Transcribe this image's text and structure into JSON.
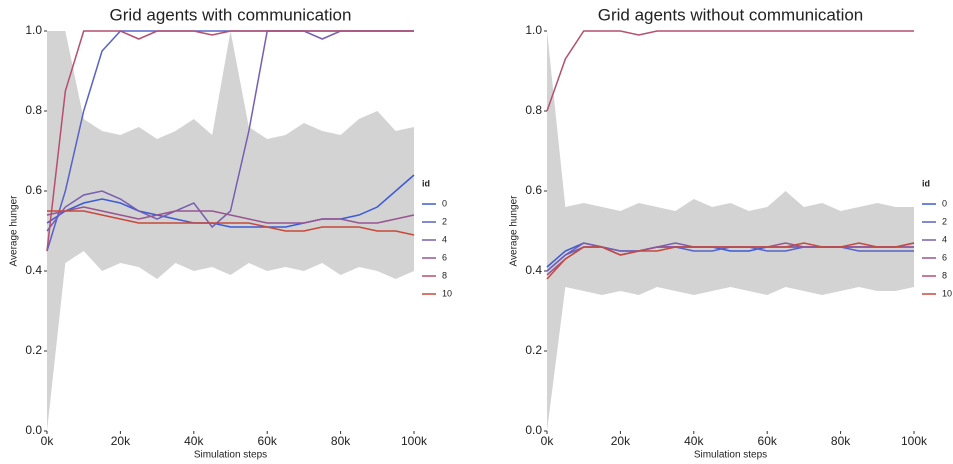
{
  "chart_data": [
    {
      "type": "line",
      "title": "Grid agents with communication",
      "x_label": "Simulation steps",
      "y_label": "Average hunger",
      "legend_title": "id",
      "x": [
        0,
        5000,
        10000,
        15000,
        20000,
        25000,
        30000,
        35000,
        40000,
        45000,
        50000,
        55000,
        60000,
        65000,
        70000,
        75000,
        80000,
        85000,
        90000,
        95000,
        100000
      ],
      "band": {
        "color": "#d3d3d3",
        "low": [
          0.0,
          0.42,
          0.45,
          0.4,
          0.42,
          0.41,
          0.38,
          0.42,
          0.4,
          0.41,
          0.39,
          0.42,
          0.4,
          0.41,
          0.4,
          0.42,
          0.39,
          0.41,
          0.4,
          0.38,
          0.4
        ],
        "high": [
          1.0,
          1.0,
          0.78,
          0.75,
          0.74,
          0.76,
          0.73,
          0.75,
          0.78,
          0.74,
          1.0,
          0.76,
          0.73,
          0.74,
          0.77,
          0.75,
          0.74,
          0.78,
          0.8,
          0.75,
          0.76
        ]
      },
      "series": [
        {
          "name": "0",
          "color": "#3c5ad8",
          "values": [
            0.52,
            0.55,
            0.57,
            0.58,
            0.57,
            0.55,
            0.54,
            0.53,
            0.52,
            0.52,
            0.51,
            0.51,
            0.51,
            0.51,
            0.52,
            0.53,
            0.53,
            0.54,
            0.56,
            0.6,
            0.64
          ]
        },
        {
          "name": "2",
          "color": "#5862c8",
          "values": [
            0.45,
            0.6,
            0.8,
            0.95,
            1.0,
            1.0,
            1.0,
            1.0,
            1.0,
            1.0,
            1.0,
            1.0,
            1.0,
            1.0,
            1.0,
            1.0,
            1.0,
            1.0,
            1.0,
            1.0,
            1.0
          ]
        },
        {
          "name": "4",
          "color": "#775eb0",
          "values": [
            0.5,
            0.56,
            0.59,
            0.6,
            0.58,
            0.55,
            0.53,
            0.55,
            0.57,
            0.51,
            0.55,
            0.75,
            1.0,
            1.0,
            1.0,
            0.98,
            1.0,
            1.0,
            1.0,
            1.0,
            1.0
          ]
        },
        {
          "name": "6",
          "color": "#985591",
          "values": [
            0.54,
            0.55,
            0.56,
            0.55,
            0.54,
            0.53,
            0.54,
            0.55,
            0.55,
            0.55,
            0.54,
            0.53,
            0.52,
            0.52,
            0.52,
            0.53,
            0.53,
            0.52,
            0.52,
            0.53,
            0.54
          ]
        },
        {
          "name": "8",
          "color": "#b64f6d",
          "values": [
            0.45,
            0.85,
            1.0,
            1.0,
            1.0,
            0.98,
            1.0,
            1.0,
            1.0,
            0.99,
            1.0,
            1.0,
            1.0,
            1.0,
            1.0,
            1.0,
            1.0,
            1.0,
            1.0,
            1.0,
            1.0
          ]
        },
        {
          "name": "10",
          "color": "#c8493b",
          "values": [
            0.55,
            0.55,
            0.55,
            0.54,
            0.53,
            0.52,
            0.52,
            0.52,
            0.52,
            0.52,
            0.52,
            0.52,
            0.51,
            0.5,
            0.5,
            0.51,
            0.51,
            0.51,
            0.5,
            0.5,
            0.49
          ]
        }
      ],
      "xlim": [
        0,
        100000
      ],
      "ylim": [
        0,
        1
      ],
      "xticks": [
        {
          "value": 0,
          "label": "0k"
        },
        {
          "value": 20000,
          "label": "20k"
        },
        {
          "value": 40000,
          "label": "40k"
        },
        {
          "value": 60000,
          "label": "60k"
        },
        {
          "value": 80000,
          "label": "80k"
        },
        {
          "value": 100000,
          "label": "100k"
        }
      ],
      "yticks": [
        {
          "value": 0,
          "label": "0.0"
        },
        0.2,
        0.4,
        0.6,
        0.8,
        {
          "value": 1,
          "label": "1.0"
        }
      ]
    },
    {
      "type": "line",
      "title": "Grid agents without communication",
      "x_label": "Simulation steps",
      "y_label": "Average hunger",
      "legend_title": "id",
      "x": [
        0,
        5000,
        10000,
        15000,
        20000,
        25000,
        30000,
        35000,
        40000,
        45000,
        50000,
        55000,
        60000,
        65000,
        70000,
        75000,
        80000,
        85000,
        90000,
        95000,
        100000
      ],
      "band": {
        "color": "#d3d3d3",
        "low": [
          0.0,
          0.36,
          0.35,
          0.34,
          0.35,
          0.34,
          0.36,
          0.35,
          0.34,
          0.35,
          0.36,
          0.35,
          0.34,
          0.36,
          0.35,
          0.34,
          0.35,
          0.36,
          0.35,
          0.35,
          0.36
        ],
        "high": [
          1.0,
          0.56,
          0.57,
          0.56,
          0.55,
          0.57,
          0.56,
          0.55,
          0.58,
          0.56,
          0.57,
          0.55,
          0.56,
          0.6,
          0.56,
          0.57,
          0.55,
          0.56,
          0.57,
          0.56,
          0.56
        ]
      },
      "series": [
        {
          "name": "0",
          "color": "#3c5ad8",
          "values": [
            0.41,
            0.45,
            0.47,
            0.46,
            0.45,
            0.45,
            0.46,
            0.46,
            0.46,
            0.46,
            0.45,
            0.45,
            0.46,
            0.46,
            0.46,
            0.46,
            0.46,
            0.46,
            0.46,
            0.46,
            0.46
          ]
        },
        {
          "name": "2",
          "color": "#5862c8",
          "values": [
            0.4,
            0.44,
            0.46,
            0.46,
            0.44,
            0.45,
            0.46,
            0.46,
            0.45,
            0.45,
            0.46,
            0.46,
            0.45,
            0.45,
            0.46,
            0.46,
            0.46,
            0.45,
            0.45,
            0.45,
            0.45
          ]
        },
        {
          "name": "4",
          "color": "#775eb0",
          "values": [
            0.4,
            0.44,
            0.47,
            0.46,
            0.45,
            0.45,
            0.46,
            0.47,
            0.46,
            0.46,
            0.46,
            0.46,
            0.46,
            0.46,
            0.46,
            0.46,
            0.46,
            0.46,
            0.46,
            0.46,
            0.47
          ]
        },
        {
          "name": "6",
          "color": "#985591",
          "values": [
            0.39,
            0.43,
            0.46,
            0.46,
            0.44,
            0.45,
            0.46,
            0.46,
            0.46,
            0.46,
            0.46,
            0.46,
            0.46,
            0.47,
            0.46,
            0.46,
            0.46,
            0.46,
            0.46,
            0.46,
            0.46
          ]
        },
        {
          "name": "8",
          "color": "#b64f6d",
          "values": [
            0.8,
            0.93,
            1.0,
            1.0,
            1.0,
            0.99,
            1.0,
            1.0,
            1.0,
            1.0,
            1.0,
            1.0,
            1.0,
            1.0,
            1.0,
            1.0,
            1.0,
            1.0,
            1.0,
            1.0,
            1.0
          ]
        },
        {
          "name": "10",
          "color": "#c8493b",
          "values": [
            0.38,
            0.43,
            0.46,
            0.46,
            0.44,
            0.45,
            0.45,
            0.46,
            0.46,
            0.46,
            0.46,
            0.46,
            0.46,
            0.46,
            0.47,
            0.46,
            0.46,
            0.47,
            0.46,
            0.46,
            0.47
          ]
        }
      ],
      "xlim": [
        0,
        100000
      ],
      "ylim": [
        0,
        1
      ],
      "xticks": [
        {
          "value": 0,
          "label": "0k"
        },
        {
          "value": 20000,
          "label": "20k"
        },
        {
          "value": 40000,
          "label": "40k"
        },
        {
          "value": 60000,
          "label": "60k"
        },
        {
          "value": 80000,
          "label": "80k"
        },
        {
          "value": 100000,
          "label": "100k"
        }
      ],
      "yticks": [
        {
          "value": 0,
          "label": "0.0"
        },
        0.2,
        0.4,
        0.6,
        0.8,
        {
          "value": 1,
          "label": "1.0"
        }
      ]
    }
  ]
}
